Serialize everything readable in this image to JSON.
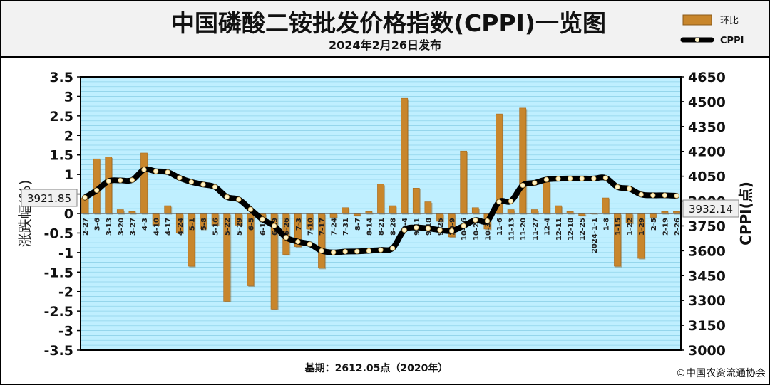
{
  "header": {
    "title": "中国磷酸二铵批发价格指数(CPPI)一览图",
    "subtitle": "2024年2月26日发布"
  },
  "legend": {
    "bar_label": "环比",
    "line_label": "CPPI"
  },
  "footer": {
    "base": "基期：2612.05点（2020年）",
    "copyright": "©中国农资流通协会"
  },
  "callouts": {
    "first": "3921.85",
    "last": "3932.14"
  },
  "colors": {
    "background": "#bfefff",
    "bar": "#c8862c",
    "line": "#000000",
    "marker": "#fff4c8",
    "frame": "#000000"
  },
  "chart_data": {
    "type": "bar",
    "categories": [
      "2-27",
      "3-6",
      "3-13",
      "3-20",
      "3-27",
      "4-3",
      "4-10",
      "4-17",
      "4-24",
      "5-1",
      "5-8",
      "5-16",
      "5-22",
      "5-29",
      "6-5",
      "6-12",
      "6-19",
      "6-26",
      "7-3",
      "7-10",
      "7-17",
      "7-24",
      "7-31",
      "8-7",
      "8-14",
      "8-21",
      "8-28",
      "9-4",
      "9-11",
      "9-18",
      "9-25",
      "10-9",
      "10-16",
      "10-23",
      "10-30",
      "11-6",
      "11-13",
      "11-20",
      "11-27",
      "12-4",
      "12-11",
      "12-18",
      "12-25",
      "2024-1-1",
      "1-8",
      "1-15",
      "1-22",
      "1-29",
      "2-5",
      "2-19",
      "2-26"
    ],
    "series": [
      {
        "name": "环比",
        "type": "bar",
        "axis": "left",
        "values": [
          0.4,
          1.4,
          1.45,
          0.1,
          0.05,
          1.55,
          -0.3,
          0.2,
          -0.5,
          -1.35,
          -0.4,
          -0.3,
          -2.25,
          -0.3,
          -1.85,
          -0.2,
          -2.45,
          -1.05,
          -0.85,
          -0.4,
          -1.4,
          -0.1,
          0.15,
          -0.05,
          0.05,
          0.75,
          0.2,
          2.95,
          0.65,
          0.3,
          -0.2,
          -0.6,
          1.6,
          0.15,
          -0.4,
          2.55,
          0.1,
          2.7,
          0.1,
          0.8,
          0.2,
          0.05,
          -0.05,
          0.0,
          0.4,
          -1.35,
          -0.25,
          -1.15,
          -0.1,
          0.05,
          0.05
        ]
      },
      {
        "name": "CPPI",
        "type": "line",
        "axis": "right",
        "values": [
          3921.85,
          3965,
          4020,
          4025,
          4027,
          4090,
          4080,
          4075,
          4040,
          4015,
          4000,
          3985,
          3925,
          3910,
          3850,
          3790,
          3750,
          3680,
          3655,
          3640,
          3600,
          3590,
          3595,
          3596,
          3600,
          3605,
          3615,
          3725,
          3740,
          3735,
          3725,
          3720,
          3750,
          3785,
          3780,
          3895,
          3900,
          3995,
          4010,
          4030,
          4035,
          4036,
          4036,
          4036,
          4040,
          3985,
          3975,
          3940,
          3935,
          3935,
          3932.14
        ]
      }
    ],
    "ylabel": "涨跌幅(%)",
    "y2label": "CPPI(点)",
    "ylim": [
      -3.5,
      3.5
    ],
    "y2lim": [
      3000,
      4650
    ],
    "y_ticks": [
      "3.5",
      "3",
      "2.5",
      "2",
      "1.5",
      "1",
      "0.5",
      "0",
      "-0.5",
      "-1",
      "-1.5",
      "-2",
      "-2.5",
      "-3",
      "-3.5"
    ],
    "y2_ticks": [
      "4650",
      "4500",
      "4350",
      "4200",
      "4050",
      "3900",
      "3750",
      "3600",
      "3450",
      "3300",
      "3150",
      "3000"
    ],
    "grid": true,
    "legend_position": "top-right"
  }
}
